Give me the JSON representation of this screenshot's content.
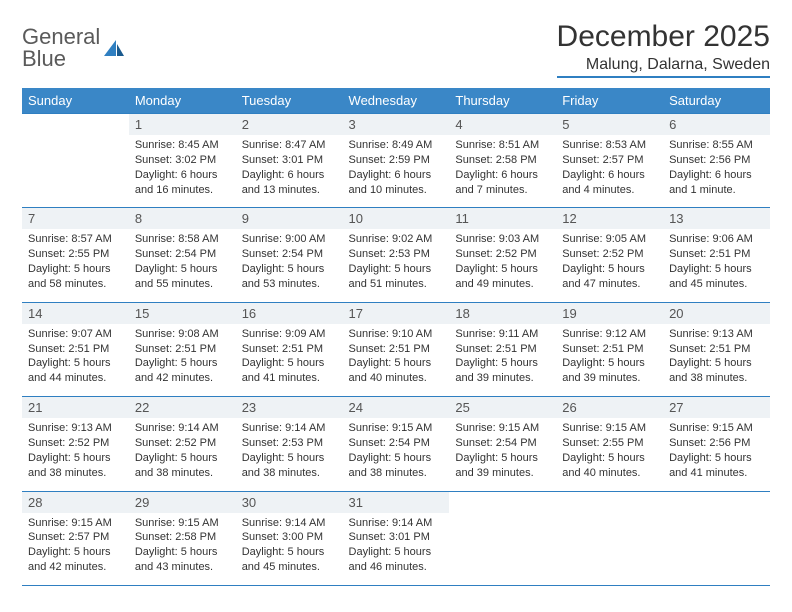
{
  "logo": {
    "line1": "General",
    "line2": "Blue"
  },
  "title": "December 2025",
  "location": "Malung, Dalarna, Sweden",
  "day_headers": [
    "Sunday",
    "Monday",
    "Tuesday",
    "Wednesday",
    "Thursday",
    "Friday",
    "Saturday"
  ],
  "colors": {
    "header_bg": "#3a87c7",
    "rule": "#2f7fc1",
    "daynum_bg": "#eef2f5",
    "text": "#333333",
    "logo_gray": "#5a5a5a",
    "logo_blue": "#2f7fc1"
  },
  "weeks": [
    [
      {
        "empty": true
      },
      {
        "num": "1",
        "l1": "Sunrise: 8:45 AM",
        "l2": "Sunset: 3:02 PM",
        "l3": "Daylight: 6 hours",
        "l4": "and 16 minutes."
      },
      {
        "num": "2",
        "l1": "Sunrise: 8:47 AM",
        "l2": "Sunset: 3:01 PM",
        "l3": "Daylight: 6 hours",
        "l4": "and 13 minutes."
      },
      {
        "num": "3",
        "l1": "Sunrise: 8:49 AM",
        "l2": "Sunset: 2:59 PM",
        "l3": "Daylight: 6 hours",
        "l4": "and 10 minutes."
      },
      {
        "num": "4",
        "l1": "Sunrise: 8:51 AM",
        "l2": "Sunset: 2:58 PM",
        "l3": "Daylight: 6 hours",
        "l4": "and 7 minutes."
      },
      {
        "num": "5",
        "l1": "Sunrise: 8:53 AM",
        "l2": "Sunset: 2:57 PM",
        "l3": "Daylight: 6 hours",
        "l4": "and 4 minutes."
      },
      {
        "num": "6",
        "l1": "Sunrise: 8:55 AM",
        "l2": "Sunset: 2:56 PM",
        "l3": "Daylight: 6 hours",
        "l4": "and 1 minute."
      }
    ],
    [
      {
        "num": "7",
        "l1": "Sunrise: 8:57 AM",
        "l2": "Sunset: 2:55 PM",
        "l3": "Daylight: 5 hours",
        "l4": "and 58 minutes."
      },
      {
        "num": "8",
        "l1": "Sunrise: 8:58 AM",
        "l2": "Sunset: 2:54 PM",
        "l3": "Daylight: 5 hours",
        "l4": "and 55 minutes."
      },
      {
        "num": "9",
        "l1": "Sunrise: 9:00 AM",
        "l2": "Sunset: 2:54 PM",
        "l3": "Daylight: 5 hours",
        "l4": "and 53 minutes."
      },
      {
        "num": "10",
        "l1": "Sunrise: 9:02 AM",
        "l2": "Sunset: 2:53 PM",
        "l3": "Daylight: 5 hours",
        "l4": "and 51 minutes."
      },
      {
        "num": "11",
        "l1": "Sunrise: 9:03 AM",
        "l2": "Sunset: 2:52 PM",
        "l3": "Daylight: 5 hours",
        "l4": "and 49 minutes."
      },
      {
        "num": "12",
        "l1": "Sunrise: 9:05 AM",
        "l2": "Sunset: 2:52 PM",
        "l3": "Daylight: 5 hours",
        "l4": "and 47 minutes."
      },
      {
        "num": "13",
        "l1": "Sunrise: 9:06 AM",
        "l2": "Sunset: 2:51 PM",
        "l3": "Daylight: 5 hours",
        "l4": "and 45 minutes."
      }
    ],
    [
      {
        "num": "14",
        "l1": "Sunrise: 9:07 AM",
        "l2": "Sunset: 2:51 PM",
        "l3": "Daylight: 5 hours",
        "l4": "and 44 minutes."
      },
      {
        "num": "15",
        "l1": "Sunrise: 9:08 AM",
        "l2": "Sunset: 2:51 PM",
        "l3": "Daylight: 5 hours",
        "l4": "and 42 minutes."
      },
      {
        "num": "16",
        "l1": "Sunrise: 9:09 AM",
        "l2": "Sunset: 2:51 PM",
        "l3": "Daylight: 5 hours",
        "l4": "and 41 minutes."
      },
      {
        "num": "17",
        "l1": "Sunrise: 9:10 AM",
        "l2": "Sunset: 2:51 PM",
        "l3": "Daylight: 5 hours",
        "l4": "and 40 minutes."
      },
      {
        "num": "18",
        "l1": "Sunrise: 9:11 AM",
        "l2": "Sunset: 2:51 PM",
        "l3": "Daylight: 5 hours",
        "l4": "and 39 minutes."
      },
      {
        "num": "19",
        "l1": "Sunrise: 9:12 AM",
        "l2": "Sunset: 2:51 PM",
        "l3": "Daylight: 5 hours",
        "l4": "and 39 minutes."
      },
      {
        "num": "20",
        "l1": "Sunrise: 9:13 AM",
        "l2": "Sunset: 2:51 PM",
        "l3": "Daylight: 5 hours",
        "l4": "and 38 minutes."
      }
    ],
    [
      {
        "num": "21",
        "l1": "Sunrise: 9:13 AM",
        "l2": "Sunset: 2:52 PM",
        "l3": "Daylight: 5 hours",
        "l4": "and 38 minutes."
      },
      {
        "num": "22",
        "l1": "Sunrise: 9:14 AM",
        "l2": "Sunset: 2:52 PM",
        "l3": "Daylight: 5 hours",
        "l4": "and 38 minutes."
      },
      {
        "num": "23",
        "l1": "Sunrise: 9:14 AM",
        "l2": "Sunset: 2:53 PM",
        "l3": "Daylight: 5 hours",
        "l4": "and 38 minutes."
      },
      {
        "num": "24",
        "l1": "Sunrise: 9:15 AM",
        "l2": "Sunset: 2:54 PM",
        "l3": "Daylight: 5 hours",
        "l4": "and 38 minutes."
      },
      {
        "num": "25",
        "l1": "Sunrise: 9:15 AM",
        "l2": "Sunset: 2:54 PM",
        "l3": "Daylight: 5 hours",
        "l4": "and 39 minutes."
      },
      {
        "num": "26",
        "l1": "Sunrise: 9:15 AM",
        "l2": "Sunset: 2:55 PM",
        "l3": "Daylight: 5 hours",
        "l4": "and 40 minutes."
      },
      {
        "num": "27",
        "l1": "Sunrise: 9:15 AM",
        "l2": "Sunset: 2:56 PM",
        "l3": "Daylight: 5 hours",
        "l4": "and 41 minutes."
      }
    ],
    [
      {
        "num": "28",
        "l1": "Sunrise: 9:15 AM",
        "l2": "Sunset: 2:57 PM",
        "l3": "Daylight: 5 hours",
        "l4": "and 42 minutes."
      },
      {
        "num": "29",
        "l1": "Sunrise: 9:15 AM",
        "l2": "Sunset: 2:58 PM",
        "l3": "Daylight: 5 hours",
        "l4": "and 43 minutes."
      },
      {
        "num": "30",
        "l1": "Sunrise: 9:14 AM",
        "l2": "Sunset: 3:00 PM",
        "l3": "Daylight: 5 hours",
        "l4": "and 45 minutes."
      },
      {
        "num": "31",
        "l1": "Sunrise: 9:14 AM",
        "l2": "Sunset: 3:01 PM",
        "l3": "Daylight: 5 hours",
        "l4": "and 46 minutes."
      },
      {
        "empty": true
      },
      {
        "empty": true
      },
      {
        "empty": true
      }
    ]
  ]
}
